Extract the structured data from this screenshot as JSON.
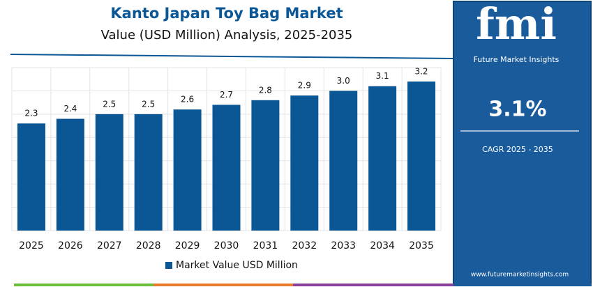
{
  "chart_data": {
    "type": "bar",
    "title": "Kanto Japan Toy Bag Market",
    "subtitle": "Value (USD Million) Analysis, 2025-2035",
    "categories": [
      "2025",
      "2026",
      "2027",
      "2028",
      "2029",
      "2030",
      "2031",
      "2032",
      "2033",
      "2034",
      "2035"
    ],
    "series": [
      {
        "name": "Market Value USD Million",
        "color": "#0b5796",
        "values": [
          2.3,
          2.4,
          2.5,
          2.5,
          2.6,
          2.7,
          2.8,
          2.9,
          3.0,
          3.1,
          3.2
        ],
        "value_labels": [
          "2.3",
          "2.4",
          "2.5",
          "2.5",
          "2.6",
          "2.7",
          "2.8",
          "2.9",
          "3.0",
          "3.1",
          "3.2"
        ]
      }
    ],
    "ylim": [
      0,
      3.5
    ],
    "yticks": [
      0,
      0.5,
      1,
      1.5,
      2,
      2.5,
      3,
      3.5
    ],
    "grid": true
  },
  "panel": {
    "logo": "fmi",
    "brand": "Future Market Insights",
    "cagr": "3.1%",
    "cagr_label": "CAGR 2025 - 2035",
    "url": "www.futuremarketinsights.com"
  }
}
